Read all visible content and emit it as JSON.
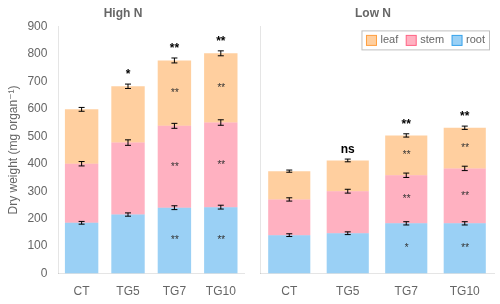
{
  "chart_data": [
    {
      "type": "bar",
      "title": "High N",
      "categories": [
        "CT",
        "TG5",
        "TG7",
        "TG10"
      ],
      "stacked": true,
      "series": [
        {
          "name": "root",
          "values": [
            185,
            215,
            240,
            242
          ],
          "errors": [
            5,
            6,
            7,
            7
          ],
          "annotations": [
            null,
            null,
            "**",
            "**"
          ]
        },
        {
          "name": "stem",
          "values": [
            215,
            262,
            298,
            308
          ],
          "errors": [
            8,
            10,
            9,
            10
          ],
          "annotations": [
            null,
            null,
            "**",
            "**"
          ]
        },
        {
          "name": "leaf",
          "values": [
            198,
            205,
            238,
            252
          ],
          "errors": [
            7,
            8,
            9,
            9
          ],
          "annotations": [
            null,
            null,
            "**",
            "**"
          ]
        }
      ],
      "top_annotations": [
        null,
        "*",
        "**",
        "**"
      ],
      "ylabel": "Dry weight (mg organ⁻¹)",
      "ylim": [
        0,
        900
      ],
      "yticks": [
        0,
        100,
        200,
        300,
        400,
        500,
        600,
        700,
        800,
        900
      ],
      "grid": false
    },
    {
      "type": "bar",
      "title": "Low N",
      "categories": [
        "CT",
        "TG5",
        "TG7",
        "TG10"
      ],
      "stacked": true,
      "series": [
        {
          "name": "root",
          "values": [
            140,
            147,
            183,
            183
          ],
          "errors": [
            5,
            5,
            6,
            6
          ],
          "annotations": [
            null,
            null,
            "*",
            "**"
          ]
        },
        {
          "name": "stem",
          "values": [
            130,
            153,
            175,
            200
          ],
          "errors": [
            6,
            7,
            8,
            8
          ],
          "annotations": [
            null,
            null,
            "**",
            "**"
          ]
        },
        {
          "name": "leaf",
          "values": [
            103,
            112,
            145,
            148
          ],
          "errors": [
            4,
            5,
            6,
            6
          ],
          "annotations": [
            null,
            null,
            "**",
            "**"
          ]
        }
      ],
      "top_annotations": [
        null,
        "ns",
        "**",
        "**"
      ],
      "ylim": [
        0,
        900
      ],
      "yticks": [
        0,
        100,
        200,
        300,
        400,
        500,
        600,
        700,
        800,
        900
      ],
      "grid": false,
      "tick_labels": "x",
      "legend": "upper right"
    }
  ]
}
